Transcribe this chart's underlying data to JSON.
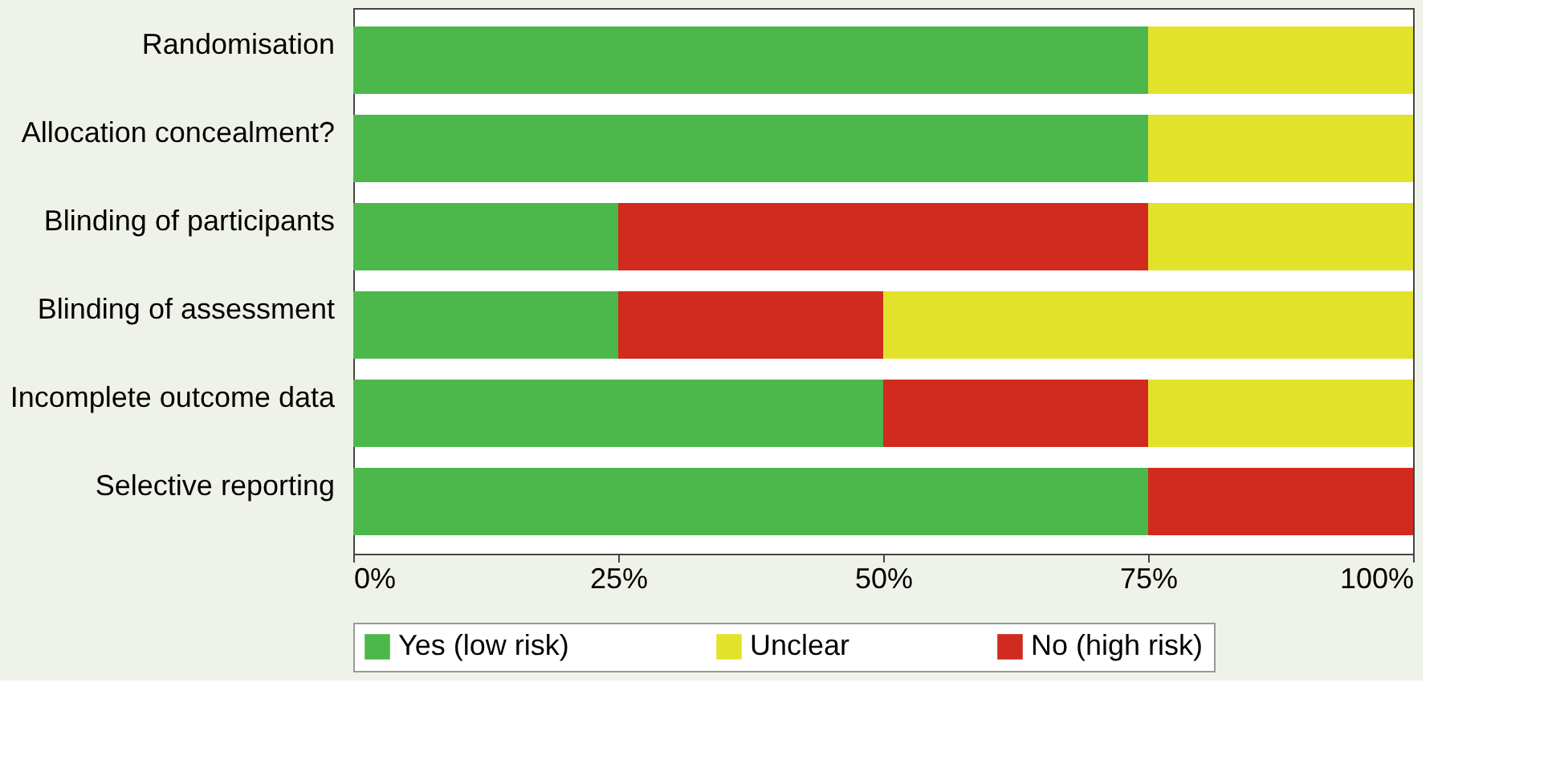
{
  "chart_data": {
    "type": "bar",
    "orientation": "horizontal",
    "stacked": true,
    "categories": [
      "Randomisation",
      "Allocation concealment?",
      "Blinding of participants",
      "Blinding of assessment",
      "Incomplete outcome data",
      "Selective reporting"
    ],
    "series": [
      {
        "name": "Yes (low risk)",
        "color": "#4cb84c",
        "values": [
          75,
          75,
          25,
          25,
          50,
          75
        ]
      },
      {
        "name": "No (high risk)",
        "color": "#d12a1f",
        "values": [
          0,
          0,
          50,
          25,
          25,
          25
        ]
      },
      {
        "name": "Unclear",
        "color": "#e2e22a",
        "values": [
          25,
          25,
          25,
          50,
          25,
          0
        ]
      }
    ],
    "xlim": [
      0,
      100
    ],
    "xticks": [
      {
        "value": 0,
        "label": "0%"
      },
      {
        "value": 25,
        "label": "25%"
      },
      {
        "value": 50,
        "label": "50%"
      },
      {
        "value": 75,
        "label": "75%"
      },
      {
        "value": 100,
        "label": "100%"
      }
    ],
    "grid": false,
    "legend": "bottom"
  }
}
